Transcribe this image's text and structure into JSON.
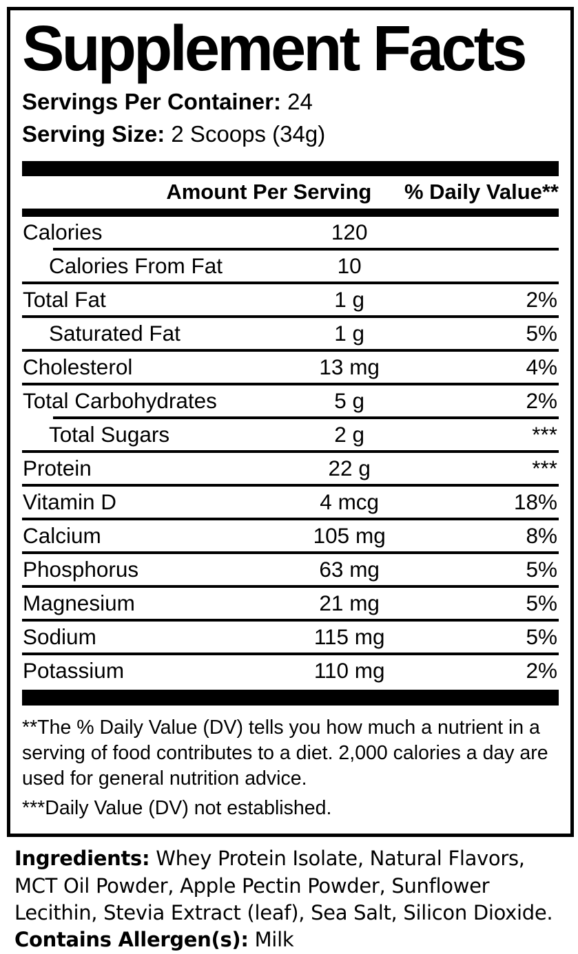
{
  "colors": {
    "text": "#000000",
    "background": "#ffffff"
  },
  "title": "Supplement Facts",
  "serving_info": {
    "servings_label": "Servings Per Container:",
    "servings_value": "24",
    "size_label": "Serving Size:",
    "size_value": "2 Scoops (34g)"
  },
  "table": {
    "header": {
      "amount": "Amount Per Serving",
      "daily_value": "% Daily Value**"
    },
    "rows": [
      {
        "name": "Calories",
        "amount": "120",
        "dv": "",
        "sub": false,
        "divider": "none"
      },
      {
        "name": "Calories From Fat",
        "amount": "10",
        "dv": "",
        "sub": true,
        "divider": "indent"
      },
      {
        "name": "Total Fat",
        "amount": "1 g",
        "dv": "2%",
        "sub": false,
        "divider": "full"
      },
      {
        "name": "Saturated Fat",
        "amount": "1 g",
        "dv": "5%",
        "sub": true,
        "divider": "full"
      },
      {
        "name": "Cholesterol",
        "amount": "13 mg",
        "dv": "4%",
        "sub": false,
        "divider": "full"
      },
      {
        "name": "Total Carbohydrates",
        "amount": "5 g",
        "dv": "2%",
        "sub": false,
        "divider": "full"
      },
      {
        "name": "Total Sugars",
        "amount": "2 g",
        "dv": "***",
        "sub": true,
        "divider": "indent"
      },
      {
        "name": "Protein",
        "amount": "22 g",
        "dv": "***",
        "sub": false,
        "divider": "full"
      },
      {
        "name": "Vitamin D",
        "amount": "4 mcg",
        "dv": "18%",
        "sub": false,
        "divider": "full"
      },
      {
        "name": "Calcium",
        "amount": "105 mg",
        "dv": "8%",
        "sub": false,
        "divider": "full"
      },
      {
        "name": "Phosphorus",
        "amount": "63 mg",
        "dv": "5%",
        "sub": false,
        "divider": "full"
      },
      {
        "name": "Magnesium",
        "amount": "21 mg",
        "dv": "5%",
        "sub": false,
        "divider": "full"
      },
      {
        "name": "Sodium",
        "amount": "115 mg",
        "dv": "5%",
        "sub": false,
        "divider": "full"
      },
      {
        "name": "Potassium",
        "amount": "110 mg",
        "dv": "2%",
        "sub": false,
        "divider": "full"
      }
    ]
  },
  "footnotes": {
    "daily_value_note": "**The % Daily Value (DV) tells you how much a nutrient in a serving of food contributes to a diet. 2,000 calories a day are used for general nutrition advice.",
    "not_established_note": "***Daily Value (DV) not established."
  },
  "ingredients": {
    "label": "Ingredients:",
    "text": " Whey Protein Isolate, Natural Flavors, MCT Oil Powder, Apple Pectin Powder, Sunflower Lecithin, Stevia Extract (leaf), Sea Salt, Silicon Dioxide.",
    "allergen_label": "Contains Allergen(s):",
    "allergen_value": " Milk"
  }
}
